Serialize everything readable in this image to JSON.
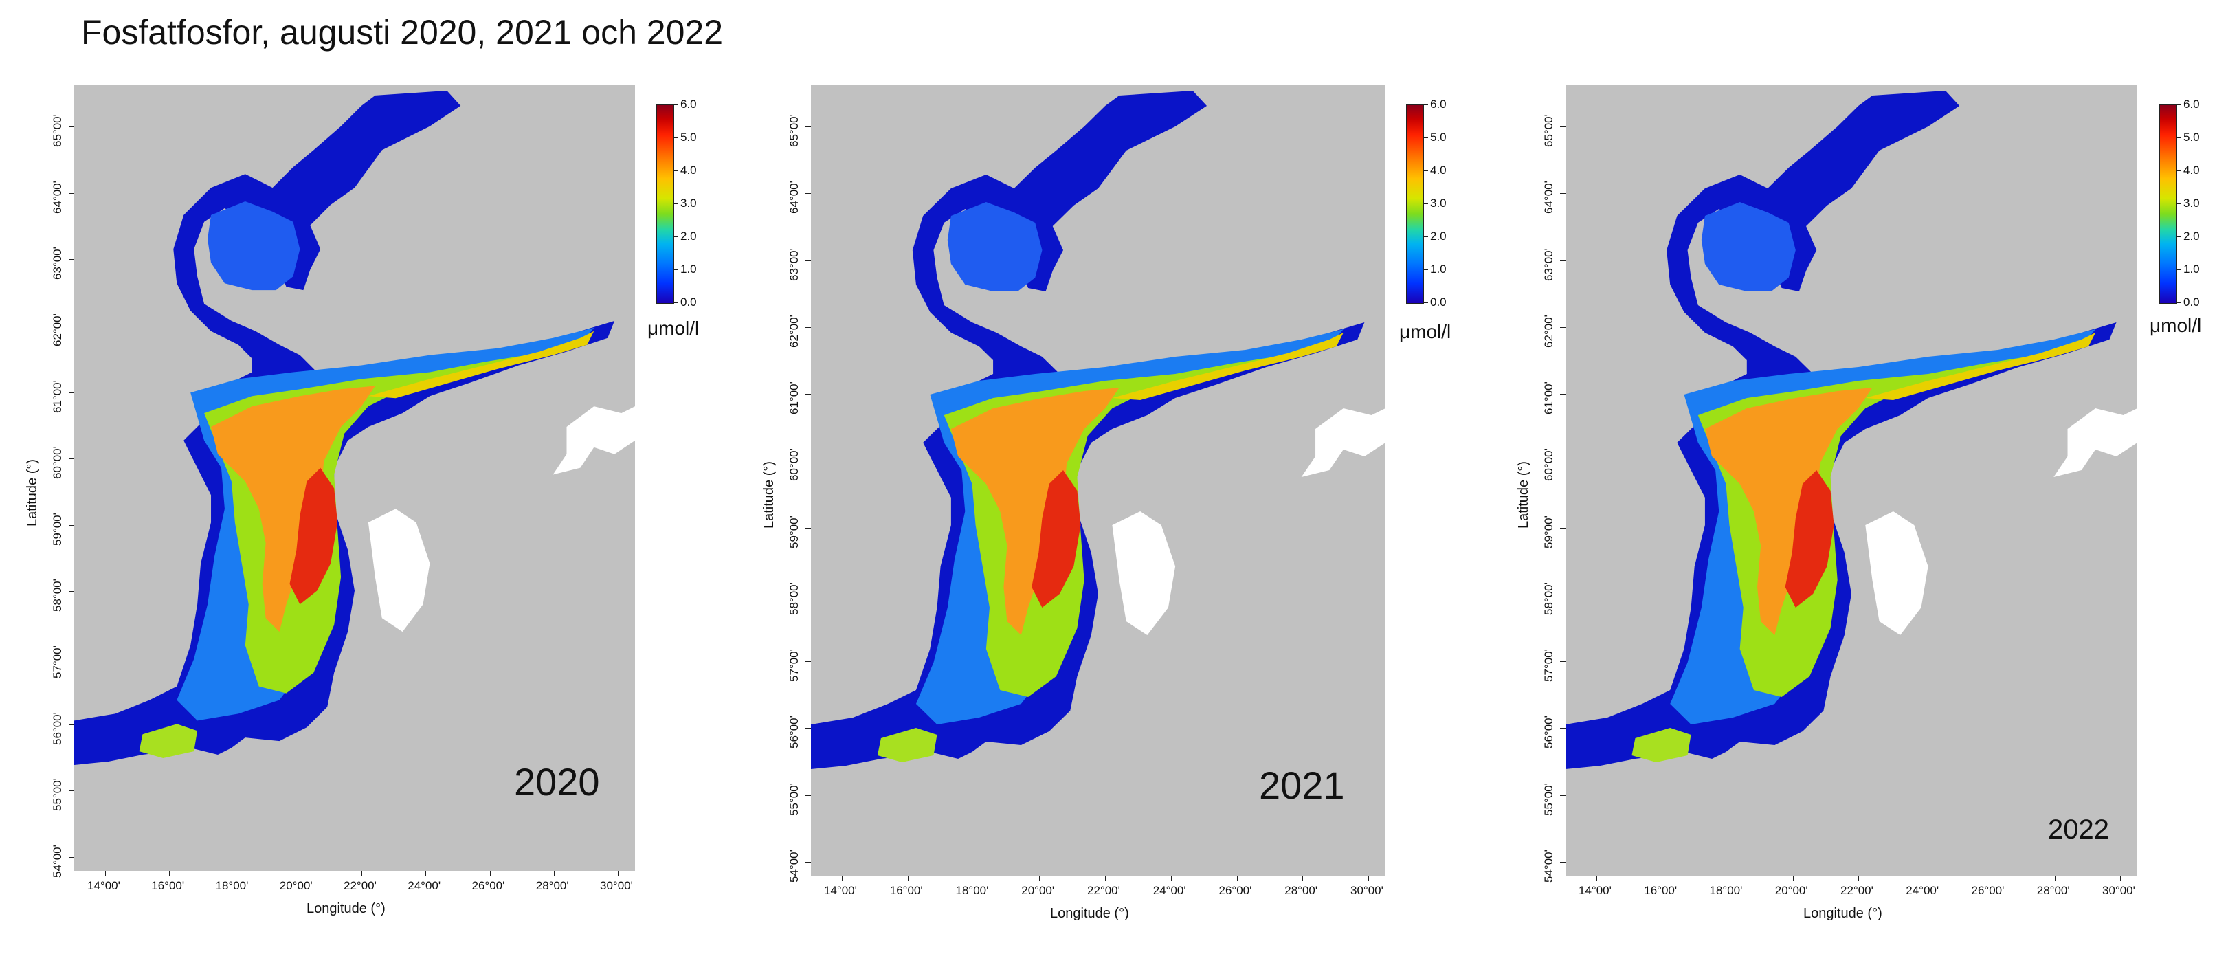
{
  "title": "Fosfatfosfor, augusti 2020, 2021 och 2022",
  "axes": {
    "latitude_label": "Latitude (°)",
    "longitude_label": "Longitude (°)",
    "latitude_ticks": [
      "54°00'",
      "55°00'",
      "56°00'",
      "57°00'",
      "58°00'",
      "59°00'",
      "60°00'",
      "61°00'",
      "62°00'",
      "63°00'",
      "64°00'",
      "65°00'"
    ],
    "longitude_ticks": [
      "14°00'",
      "16°00'",
      "18°00'",
      "20°00'",
      "22°00'",
      "24°00'",
      "26°00'",
      "28°00'",
      "30°00'"
    ]
  },
  "colorbar": {
    "ticks": [
      "6.0",
      "5.0",
      "4.0",
      "3.0",
      "2.0",
      "1.0",
      "0.0"
    ],
    "unit": "μmol/l",
    "range": [
      0.0,
      6.0
    ]
  },
  "colors": {
    "land": "#c1c1c1",
    "no_data": "#ffffff",
    "low": "#0a14c8",
    "mid": "#7ddc1e",
    "high": "#ff3a00",
    "max": "#8c001a"
  },
  "panels": [
    {
      "year_label": "2020"
    },
    {
      "year_label": "2021"
    },
    {
      "year_label": "2022"
    }
  ]
}
